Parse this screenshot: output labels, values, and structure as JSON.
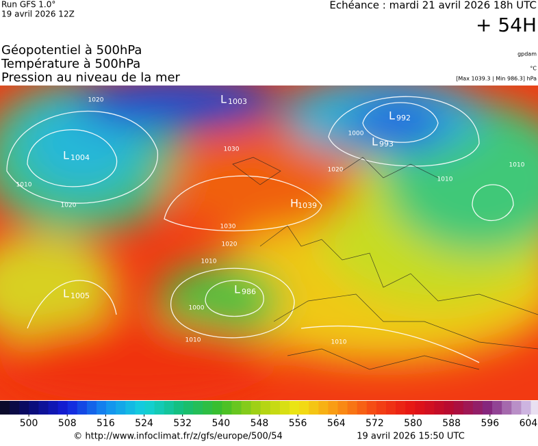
{
  "header": {
    "run": "Run GFS 1.0°",
    "run_date": "19 avril 2026 12Z",
    "valid": "Echéance : mardi 21 avril 2026 18h UTC",
    "lead": "+ 54H",
    "fields": [
      "Géopotentiel à 500hPa",
      "Température à 500hPa",
      "Pression au niveau de la mer"
    ],
    "units": [
      "gpdam",
      "°C",
      "[Max 1039.3 | Min 986.3] hPa"
    ]
  },
  "pressure_centers": [
    {
      "kind": "L",
      "value": 1004
    },
    {
      "kind": "L",
      "value": 1003
    },
    {
      "kind": "L",
      "value": 992
    },
    {
      "kind": "L",
      "value": 993
    },
    {
      "kind": "H",
      "value": 1039
    },
    {
      "kind": "L",
      "value": 986
    },
    {
      "kind": "L",
      "value": 1005
    }
  ],
  "isobar_labels": [
    1020,
    1030,
    1020,
    1010,
    1010,
    1030,
    1020,
    1010,
    1000,
    1010,
    1010,
    1020,
    1010,
    1000
  ],
  "colorbar": {
    "lim": [
      494,
      606
    ],
    "ticks": [
      500,
      508,
      516,
      524,
      532,
      540,
      548,
      556,
      564,
      572,
      580,
      588,
      596,
      604
    ]
  },
  "footer": {
    "source": "© http://www.infoclimat.fr/z/gfs/europe/500/54",
    "generated": "19 avril 2026 15:50 UTC"
  }
}
